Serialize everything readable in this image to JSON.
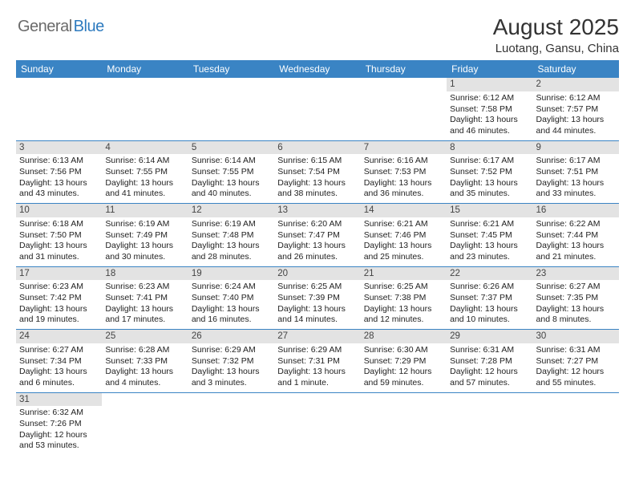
{
  "logo": {
    "gray_text": "General",
    "blue_text": "Blue",
    "shape_color": "#2e7bbf"
  },
  "title": "August 2025",
  "location": "Luotang, Gansu, China",
  "header_bg": "#3a84c4",
  "daynum_bg": "#e3e3e3",
  "days_of_week": [
    "Sunday",
    "Monday",
    "Tuesday",
    "Wednesday",
    "Thursday",
    "Friday",
    "Saturday"
  ],
  "weeks": [
    [
      null,
      null,
      null,
      null,
      null,
      {
        "n": "1",
        "sr": "Sunrise: 6:12 AM",
        "ss": "Sunset: 7:58 PM",
        "d1": "Daylight: 13 hours",
        "d2": "and 46 minutes."
      },
      {
        "n": "2",
        "sr": "Sunrise: 6:12 AM",
        "ss": "Sunset: 7:57 PM",
        "d1": "Daylight: 13 hours",
        "d2": "and 44 minutes."
      }
    ],
    [
      {
        "n": "3",
        "sr": "Sunrise: 6:13 AM",
        "ss": "Sunset: 7:56 PM",
        "d1": "Daylight: 13 hours",
        "d2": "and 43 minutes."
      },
      {
        "n": "4",
        "sr": "Sunrise: 6:14 AM",
        "ss": "Sunset: 7:55 PM",
        "d1": "Daylight: 13 hours",
        "d2": "and 41 minutes."
      },
      {
        "n": "5",
        "sr": "Sunrise: 6:14 AM",
        "ss": "Sunset: 7:55 PM",
        "d1": "Daylight: 13 hours",
        "d2": "and 40 minutes."
      },
      {
        "n": "6",
        "sr": "Sunrise: 6:15 AM",
        "ss": "Sunset: 7:54 PM",
        "d1": "Daylight: 13 hours",
        "d2": "and 38 minutes."
      },
      {
        "n": "7",
        "sr": "Sunrise: 6:16 AM",
        "ss": "Sunset: 7:53 PM",
        "d1": "Daylight: 13 hours",
        "d2": "and 36 minutes."
      },
      {
        "n": "8",
        "sr": "Sunrise: 6:17 AM",
        "ss": "Sunset: 7:52 PM",
        "d1": "Daylight: 13 hours",
        "d2": "and 35 minutes."
      },
      {
        "n": "9",
        "sr": "Sunrise: 6:17 AM",
        "ss": "Sunset: 7:51 PM",
        "d1": "Daylight: 13 hours",
        "d2": "and 33 minutes."
      }
    ],
    [
      {
        "n": "10",
        "sr": "Sunrise: 6:18 AM",
        "ss": "Sunset: 7:50 PM",
        "d1": "Daylight: 13 hours",
        "d2": "and 31 minutes."
      },
      {
        "n": "11",
        "sr": "Sunrise: 6:19 AM",
        "ss": "Sunset: 7:49 PM",
        "d1": "Daylight: 13 hours",
        "d2": "and 30 minutes."
      },
      {
        "n": "12",
        "sr": "Sunrise: 6:19 AM",
        "ss": "Sunset: 7:48 PM",
        "d1": "Daylight: 13 hours",
        "d2": "and 28 minutes."
      },
      {
        "n": "13",
        "sr": "Sunrise: 6:20 AM",
        "ss": "Sunset: 7:47 PM",
        "d1": "Daylight: 13 hours",
        "d2": "and 26 minutes."
      },
      {
        "n": "14",
        "sr": "Sunrise: 6:21 AM",
        "ss": "Sunset: 7:46 PM",
        "d1": "Daylight: 13 hours",
        "d2": "and 25 minutes."
      },
      {
        "n": "15",
        "sr": "Sunrise: 6:21 AM",
        "ss": "Sunset: 7:45 PM",
        "d1": "Daylight: 13 hours",
        "d2": "and 23 minutes."
      },
      {
        "n": "16",
        "sr": "Sunrise: 6:22 AM",
        "ss": "Sunset: 7:44 PM",
        "d1": "Daylight: 13 hours",
        "d2": "and 21 minutes."
      }
    ],
    [
      {
        "n": "17",
        "sr": "Sunrise: 6:23 AM",
        "ss": "Sunset: 7:42 PM",
        "d1": "Daylight: 13 hours",
        "d2": "and 19 minutes."
      },
      {
        "n": "18",
        "sr": "Sunrise: 6:23 AM",
        "ss": "Sunset: 7:41 PM",
        "d1": "Daylight: 13 hours",
        "d2": "and 17 minutes."
      },
      {
        "n": "19",
        "sr": "Sunrise: 6:24 AM",
        "ss": "Sunset: 7:40 PM",
        "d1": "Daylight: 13 hours",
        "d2": "and 16 minutes."
      },
      {
        "n": "20",
        "sr": "Sunrise: 6:25 AM",
        "ss": "Sunset: 7:39 PM",
        "d1": "Daylight: 13 hours",
        "d2": "and 14 minutes."
      },
      {
        "n": "21",
        "sr": "Sunrise: 6:25 AM",
        "ss": "Sunset: 7:38 PM",
        "d1": "Daylight: 13 hours",
        "d2": "and 12 minutes."
      },
      {
        "n": "22",
        "sr": "Sunrise: 6:26 AM",
        "ss": "Sunset: 7:37 PM",
        "d1": "Daylight: 13 hours",
        "d2": "and 10 minutes."
      },
      {
        "n": "23",
        "sr": "Sunrise: 6:27 AM",
        "ss": "Sunset: 7:35 PM",
        "d1": "Daylight: 13 hours",
        "d2": "and 8 minutes."
      }
    ],
    [
      {
        "n": "24",
        "sr": "Sunrise: 6:27 AM",
        "ss": "Sunset: 7:34 PM",
        "d1": "Daylight: 13 hours",
        "d2": "and 6 minutes."
      },
      {
        "n": "25",
        "sr": "Sunrise: 6:28 AM",
        "ss": "Sunset: 7:33 PM",
        "d1": "Daylight: 13 hours",
        "d2": "and 4 minutes."
      },
      {
        "n": "26",
        "sr": "Sunrise: 6:29 AM",
        "ss": "Sunset: 7:32 PM",
        "d1": "Daylight: 13 hours",
        "d2": "and 3 minutes."
      },
      {
        "n": "27",
        "sr": "Sunrise: 6:29 AM",
        "ss": "Sunset: 7:31 PM",
        "d1": "Daylight: 13 hours",
        "d2": "and 1 minute."
      },
      {
        "n": "28",
        "sr": "Sunrise: 6:30 AM",
        "ss": "Sunset: 7:29 PM",
        "d1": "Daylight: 12 hours",
        "d2": "and 59 minutes."
      },
      {
        "n": "29",
        "sr": "Sunrise: 6:31 AM",
        "ss": "Sunset: 7:28 PM",
        "d1": "Daylight: 12 hours",
        "d2": "and 57 minutes."
      },
      {
        "n": "30",
        "sr": "Sunrise: 6:31 AM",
        "ss": "Sunset: 7:27 PM",
        "d1": "Daylight: 12 hours",
        "d2": "and 55 minutes."
      }
    ],
    [
      {
        "n": "31",
        "sr": "Sunrise: 6:32 AM",
        "ss": "Sunset: 7:26 PM",
        "d1": "Daylight: 12 hours",
        "d2": "and 53 minutes."
      },
      null,
      null,
      null,
      null,
      null,
      null
    ]
  ]
}
